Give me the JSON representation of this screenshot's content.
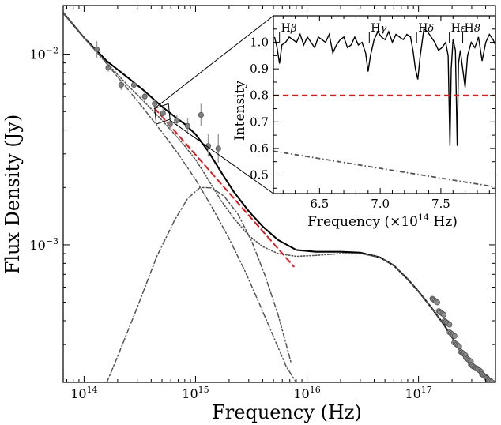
{
  "chart_data": [
    {
      "type": "line",
      "panel": "main",
      "title": "",
      "xlabel": "Frequency (Hz)",
      "ylabel": "Flux Density (Jy)",
      "x_scale": "log",
      "y_scale": "log",
      "xlim": [
        65000000000000.0,
        4.9e+17
      ],
      "ylim": [
        0.00019,
        0.018
      ],
      "x_ticks": [
        {
          "value": 100000000000000.0,
          "label": "10",
          "exp": "14"
        },
        {
          "value": 1000000000000000.0,
          "label": "10",
          "exp": "15"
        },
        {
          "value": 1e+16,
          "label": "10",
          "exp": "16"
        },
        {
          "value": 1e+17,
          "label": "10",
          "exp": "17"
        }
      ],
      "y_ticks": [
        {
          "value": 0.001,
          "label": "10",
          "exp": "−3"
        },
        {
          "value": 0.01,
          "label": "10",
          "exp": "−2"
        }
      ],
      "grid": false,
      "legend": "none",
      "series": [
        {
          "style": "solid",
          "color": "#000000",
          "x": [
            65000000000000.0,
            100000000000000.0,
            160000000000000.0,
            250000000000000.0,
            350000000000000.0,
            500000000000000.0,
            650000000000000.0,
            800000000000000.0,
            1000000000000000.0,
            1300000000000000.0,
            1700000000000000.0,
            2200000000000000.0,
            3000000000000000.0,
            4000000000000000.0,
            5500000000000000.0,
            8000000000000000.0,
            1.2e+16,
            2e+16,
            3e+16,
            4.5e+16,
            6e+16,
            8e+16,
            1e+17,
            1.3e+17,
            1.7e+17,
            2.2e+17,
            2.8e+17,
            3.5e+17,
            4.3e+17,
            4.9e+17
          ],
          "y": [
            0.0165,
            0.0122,
            0.0092,
            0.0075,
            0.0064,
            0.0053,
            0.0047,
            0.0043,
            0.0038,
            0.0031,
            0.0024,
            0.0019,
            0.0015,
            0.00125,
            0.00106,
            0.00094,
            0.00092,
            0.00092,
            0.00091,
            0.00086,
            0.00078,
            0.00066,
            0.00057,
            0.00047,
            0.00038,
            0.0003,
            0.00025,
            0.00022,
            0.0002,
            0.00019
          ]
        },
        {
          "style": "dotted",
          "color": "#555555",
          "x": [
            65000000000000.0,
            100000000000000.0,
            160000000000000.0,
            250000000000000.0,
            350000000000000.0,
            500000000000000.0,
            650000000000000.0,
            800000000000000.0,
            1000000000000000.0,
            1300000000000000.0,
            1700000000000000.0,
            2200000000000000.0,
            3000000000000000.0,
            4000000000000000.0,
            5500000000000000.0,
            8000000000000000.0,
            1.2e+16,
            2e+16,
            3e+16,
            4.5e+16,
            6e+16,
            8e+16,
            1e+17,
            1.3e+17,
            1.7e+17,
            2.2e+17,
            2.8e+17,
            3.5e+17,
            4.3e+17,
            4.9e+17
          ],
          "y": [
            0.0165,
            0.0122,
            0.009,
            0.0068,
            0.0056,
            0.0045,
            0.0038,
            0.0033,
            0.0028,
            0.0022,
            0.0017,
            0.00138,
            0.00112,
            0.00098,
            0.0009,
            0.00087,
            0.00088,
            0.0009,
            0.0009,
            0.00086,
            0.00078,
            0.00066,
            0.00057,
            0.00047,
            0.00038,
            0.0003,
            0.00025,
            0.00022,
            0.0002,
            0.00019
          ]
        },
        {
          "style": "dashdot",
          "color": "#555555",
          "x": [
            65000000000000.0,
            100000000000000.0,
            160000000000000.0,
            250000000000000.0,
            350000000000000.0,
            500000000000000.0,
            700000000000000.0,
            1000000000000000.0,
            1400000000000000.0,
            2000000000000000.0,
            2800000000000000.0,
            3800000000000000.0,
            5000000000000000.0,
            6500000000000000.0,
            8000000000000000.0
          ],
          "y": [
            0.0165,
            0.0122,
            0.0089,
            0.0065,
            0.0051,
            0.0039,
            0.003,
            0.0022,
            0.00158,
            0.00108,
            0.00072,
            0.00048,
            0.00033,
            0.00023,
            0.00019
          ]
        },
        {
          "style": "dashdot",
          "color": "#555555",
          "x": [
            160000000000000.0,
            200000000000000.0,
            300000000000000.0,
            450000000000000.0,
            650000000000000.0,
            850000000000000.0,
            1100000000000000.0,
            1400000000000000.0,
            1800000000000000.0,
            2400000000000000.0,
            3200000000000000.0,
            4200000000000000.0,
            5500000000000000.0,
            6500000000000000.0,
            7200000000000000.0
          ],
          "y": [
            0.00019,
            0.00026,
            0.00047,
            0.00087,
            0.00135,
            0.00175,
            0.002,
            0.00199,
            0.0018,
            0.00145,
            0.00104,
            0.00069,
            0.00043,
            0.0003,
            0.00024
          ]
        },
        {
          "style": "dashed",
          "color": "#e8141a",
          "x": [
            430000000000000.0,
            7600000000000000.0
          ],
          "y": [
            0.0052,
            0.00077
          ]
        }
      ],
      "points": {
        "color": "#7f7f7f",
        "x": [
          130000000000000.0,
          165000000000000.0,
          215000000000000.0,
          280000000000000.0,
          350000000000000.0,
          430000000000000.0,
          510000000000000.0,
          590000000000000.0,
          680000000000000.0,
          850000000000000.0,
          1120000000000000.0,
          1300000000000000.0,
          1600000000000000.0
        ],
        "y": [
          0.0106,
          0.0085,
          0.0069,
          0.0069,
          0.006,
          0.0055,
          0.0049,
          0.0043,
          0.0045,
          0.0042,
          0.0048,
          0.0033,
          0.0032
        ],
        "err_low": [
          0.0096,
          0.0081,
          0.0065,
          0.0066,
          0.0057,
          0.0052,
          0.0046,
          0.004,
          0.0042,
          0.0039,
          0.0042,
          0.0029,
          0.0027
        ],
        "err_high": [
          0.0117,
          0.0089,
          0.0073,
          0.0072,
          0.0063,
          0.0058,
          0.0052,
          0.0046,
          0.0048,
          0.0046,
          0.0055,
          0.0038,
          0.0038
        ],
        "xray_cluster": {
          "x": [
            1.4e+17,
            1.6e+17,
            1.8e+17,
            2e+17,
            2.2e+17,
            2.5e+17,
            2.8e+17,
            3.1e+17,
            3.5e+17,
            3.9e+17,
            4.3e+17
          ],
          "y": [
            0.00051,
            0.00044,
            0.00039,
            0.00034,
            0.0003,
            0.00027,
            0.00025,
            0.00023,
            0.00022,
            0.000205,
            0.000195
          ]
        }
      },
      "zoom_box": {
        "x": [
          430000000000000.0,
          590000000000000.0
        ],
        "y": [
          0.0043,
          0.0055
        ]
      }
    },
    {
      "type": "line",
      "panel": "inset",
      "title": "",
      "xlabel": "Frequency (×10",
      "xlabel_exp": "14",
      "xlabel_suffix": " Hz)",
      "ylabel": "Intensity",
      "xlim": [
        6.12,
        7.95
      ],
      "ylim": [
        0.43,
        1.1
      ],
      "x_ticks": [
        "6.5",
        "7.0",
        "7.5"
      ],
      "x_tick_values": [
        6.5,
        7.0,
        7.5
      ],
      "y_ticks": [
        "0.5",
        "0.6",
        "0.7",
        "0.8",
        "0.9",
        "1.0"
      ],
      "y_tick_values": [
        0.5,
        0.6,
        0.7,
        0.8,
        0.9,
        1.0
      ],
      "line_markers": [
        {
          "value": 6.17,
          "label": "H",
          "greek": "β"
        },
        {
          "value": 6.91,
          "label": "H",
          "greek": "γ"
        },
        {
          "value": 7.3,
          "label": "H",
          "greek": "δ"
        },
        {
          "value": 7.57,
          "label": "H",
          "greek": "ε"
        },
        {
          "value": 7.68,
          "label": "H",
          "greek": "8"
        }
      ],
      "series": [
        {
          "style": "solid",
          "color": "#000000",
          "x": [
            6.13,
            6.15,
            6.17,
            6.19,
            6.22,
            6.25,
            6.28,
            6.31,
            6.34,
            6.37,
            6.4,
            6.43,
            6.46,
            6.49,
            6.52,
            6.55,
            6.58,
            6.61,
            6.64,
            6.67,
            6.7,
            6.73,
            6.76,
            6.79,
            6.82,
            6.85,
            6.88,
            6.9,
            6.92,
            6.95,
            6.98,
            7.01,
            7.04,
            7.07,
            7.1,
            7.13,
            7.16,
            7.19,
            7.22,
            7.25,
            7.27,
            7.29,
            7.31,
            7.33,
            7.36,
            7.39,
            7.42,
            7.45,
            7.48,
            7.51,
            7.54,
            7.56,
            7.575,
            7.585,
            7.6,
            7.62,
            7.635,
            7.645,
            7.66,
            7.68,
            7.7,
            7.72,
            7.75,
            7.78,
            7.81,
            7.84,
            7.87,
            7.9,
            7.93,
            7.95
          ],
          "y": [
            1.02,
            0.98,
            0.92,
            0.99,
            1.0,
            1.02,
            1.01,
            1.0,
            1.03,
            0.99,
            1.02,
            1.0,
            0.98,
            1.02,
            1.01,
            1.0,
            1.03,
            0.96,
            0.99,
            1.01,
            1.02,
            0.98,
            0.99,
            1.02,
            0.99,
            1.0,
            0.96,
            0.89,
            0.95,
            1.01,
            1.04,
            1.02,
            1.01,
            1.04,
            1.0,
            1.03,
            1.02,
            1.01,
            1.03,
            1.02,
            0.97,
            0.9,
            0.86,
            0.95,
            1.05,
            1.04,
            1.02,
            1.0,
            0.97,
            0.98,
            1.0,
            0.95,
            0.61,
            0.9,
            1.01,
            0.97,
            0.61,
            0.92,
            0.97,
            0.9,
            0.83,
            0.95,
            1.0,
            0.98,
            1.02,
            0.93,
            1.0,
            1.03,
            1.01,
            0.99
          ]
        },
        {
          "style": "dashed",
          "color": "#e8141a",
          "x": [
            6.12,
            7.95
          ],
          "y": [
            0.8,
            0.8
          ]
        },
        {
          "style": "dashdot",
          "color": "#555555",
          "x": [
            6.12,
            7.95
          ],
          "y": [
            0.59,
            0.455
          ]
        }
      ]
    }
  ]
}
